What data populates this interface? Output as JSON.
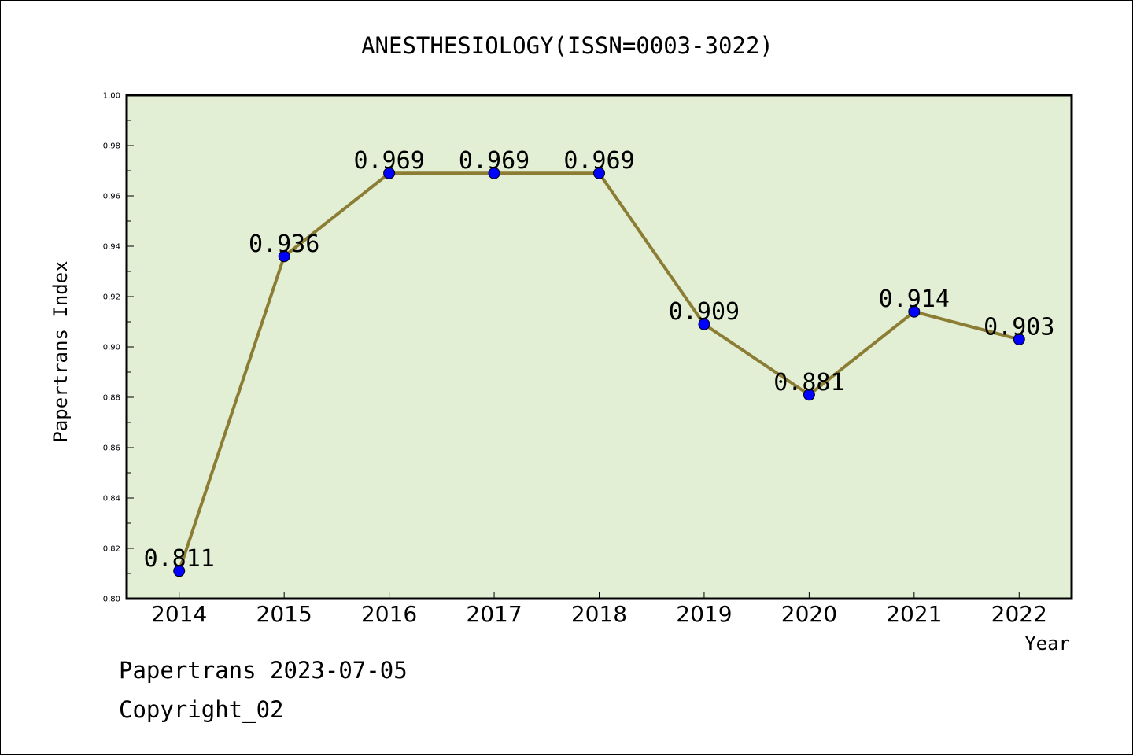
{
  "chart_data": {
    "type": "line",
    "title": "ANESTHESIOLOGY(ISSN=0003-3022)",
    "xlabel": "Year",
    "ylabel": "Papertrans Index",
    "categories": [
      "2014",
      "2015",
      "2016",
      "2017",
      "2018",
      "2019",
      "2020",
      "2021",
      "2022"
    ],
    "values": [
      0.811,
      0.936,
      0.969,
      0.969,
      0.969,
      0.909,
      0.881,
      0.914,
      0.903
    ],
    "data_labels": [
      "0.811",
      "0.936",
      "0.969",
      "0.969",
      "0.969",
      "0.909",
      "0.881",
      "0.914",
      "0.903"
    ],
    "ylim": [
      0.8,
      1.0
    ],
    "yticks": [
      "0.80",
      "0.82",
      "0.84",
      "0.86",
      "0.88",
      "0.90",
      "0.92",
      "0.94",
      "0.96",
      "0.98",
      "1.00"
    ],
    "grid": false,
    "legend": "none",
    "colors": {
      "plot_background": "#e2efd5",
      "line": "#8c7d35",
      "marker": "#0000ff"
    }
  },
  "footer": {
    "date_line": "Papertrans 2023-07-05",
    "copyright_line": "Copyright_02"
  }
}
